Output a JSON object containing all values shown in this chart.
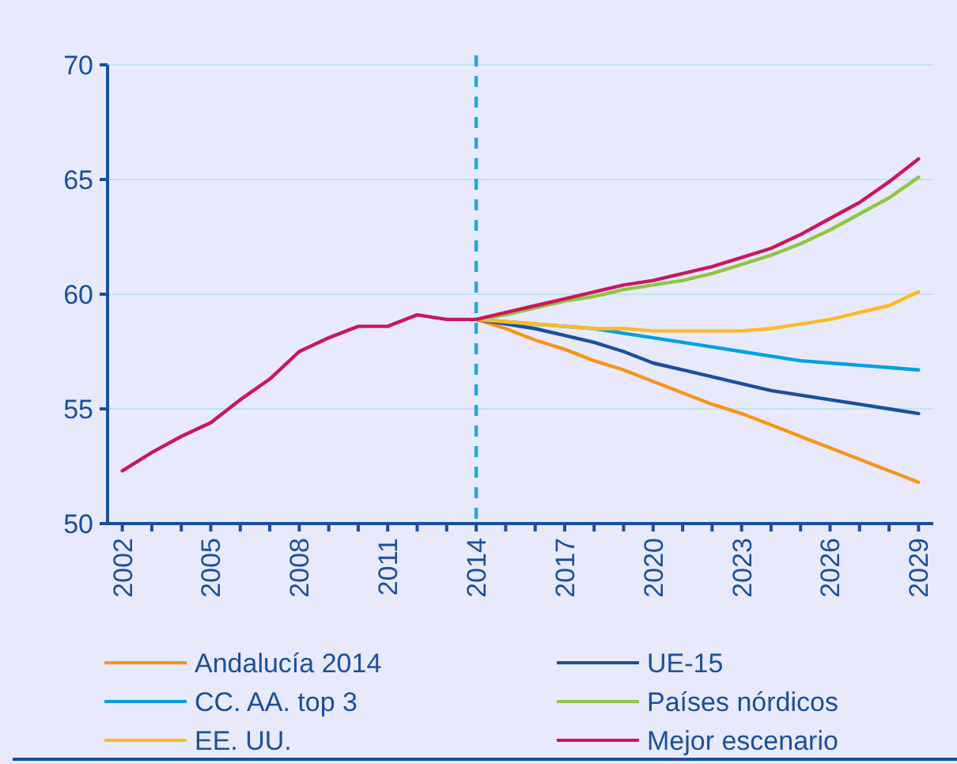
{
  "chart_data": {
    "type": "line",
    "xlim": [
      2001.5,
      2029.5
    ],
    "xticks": [
      2002,
      {
        "value": 2003,
        "label": null
      },
      {
        "value": 2004,
        "label": null
      },
      2005,
      {
        "value": 2006,
        "label": null
      },
      {
        "value": 2007,
        "label": null
      },
      2008,
      {
        "value": 2009,
        "label": null
      },
      {
        "value": 2010,
        "label": null
      },
      2011,
      {
        "value": 2012,
        "label": null
      },
      {
        "value": 2013,
        "label": null
      },
      2014,
      {
        "value": 2015,
        "label": null
      },
      {
        "value": 2016,
        "label": null
      },
      2017,
      {
        "value": 2018,
        "label": null
      },
      {
        "value": 2019,
        "label": null
      },
      2020,
      {
        "value": 2021,
        "label": null
      },
      {
        "value": 2022,
        "label": null
      },
      2023,
      {
        "value": 2024,
        "label": null
      },
      {
        "value": 2025,
        "label": null
      },
      2026,
      {
        "value": 2027,
        "label": null
      },
      {
        "value": 2028,
        "label": null
      },
      2029
    ],
    "ylim": [
      50,
      70
    ],
    "yticks": [
      50,
      55,
      60,
      65,
      70
    ],
    "grid": "y",
    "legend": "bottom",
    "line_style": "solid",
    "marker": "none",
    "ref_lines": [
      {
        "axis": "x",
        "value": 2014,
        "color": "#1ea7e6",
        "line_style": "dashed"
      }
    ],
    "series": [
      {
        "name": "Andalucía 2014",
        "color": "#f7941d",
        "x": [
          2014,
          2015,
          2016,
          2017,
          2018,
          2019,
          2020,
          2021,
          2022,
          2023,
          2024,
          2025,
          2026,
          2027,
          2028,
          2029
        ],
        "values": [
          58.9,
          58.5,
          58.0,
          57.6,
          57.1,
          56.7,
          56.2,
          55.7,
          55.2,
          54.8,
          54.3,
          53.8,
          53.3,
          52.8,
          52.3,
          51.8
        ]
      },
      {
        "name": "UE-15",
        "color": "#1b4f9c",
        "x": [
          2014,
          2015,
          2016,
          2017,
          2018,
          2019,
          2020,
          2021,
          2022,
          2023,
          2024,
          2025,
          2026,
          2027,
          2028,
          2029
        ],
        "values": [
          58.9,
          58.7,
          58.5,
          58.2,
          57.9,
          57.5,
          57.0,
          56.7,
          56.4,
          56.1,
          55.8,
          55.6,
          55.4,
          55.2,
          55.0,
          54.8
        ]
      },
      {
        "name": "CC. AA. top 3",
        "color": "#00a0e3",
        "x": [
          2014,
          2015,
          2016,
          2017,
          2018,
          2019,
          2020,
          2021,
          2022,
          2023,
          2024,
          2025,
          2026,
          2027,
          2028,
          2029
        ],
        "values": [
          58.9,
          58.8,
          58.7,
          58.6,
          58.5,
          58.3,
          58.1,
          57.9,
          57.7,
          57.5,
          57.3,
          57.1,
          57.0,
          56.9,
          56.8,
          56.7
        ]
      },
      {
        "name": "Países nórdicos",
        "color": "#8dc63f",
        "x": [
          2014,
          2015,
          2016,
          2017,
          2018,
          2019,
          2020,
          2021,
          2022,
          2023,
          2024,
          2025,
          2026,
          2027,
          2028,
          2029
        ],
        "values": [
          58.9,
          59.1,
          59.4,
          59.7,
          59.9,
          60.2,
          60.4,
          60.6,
          60.9,
          61.3,
          61.7,
          62.2,
          62.8,
          63.5,
          64.2,
          65.1
        ]
      },
      {
        "name": "EE. UU.",
        "color": "#fdb827",
        "x": [
          2014,
          2015,
          2016,
          2017,
          2018,
          2019,
          2020,
          2021,
          2022,
          2023,
          2024,
          2025,
          2026,
          2027,
          2028,
          2029
        ],
        "values": [
          58.9,
          58.8,
          58.7,
          58.6,
          58.5,
          58.5,
          58.4,
          58.4,
          58.4,
          58.4,
          58.5,
          58.7,
          58.9,
          59.2,
          59.5,
          60.1
        ]
      },
      {
        "name": "Mejor escenario",
        "color": "#c8175d",
        "x": [
          2002,
          2003,
          2004,
          2005,
          2006,
          2007,
          2008,
          2009,
          2010,
          2011,
          2012,
          2013,
          2014,
          2015,
          2016,
          2017,
          2018,
          2019,
          2020,
          2021,
          2022,
          2023,
          2024,
          2025,
          2026,
          2027,
          2028,
          2029
        ],
        "values": [
          52.3,
          53.1,
          53.8,
          54.4,
          55.4,
          56.3,
          57.5,
          58.1,
          58.6,
          58.6,
          59.1,
          58.9,
          58.9,
          59.2,
          59.5,
          59.8,
          60.1,
          60.4,
          60.6,
          60.9,
          61.2,
          61.6,
          62.0,
          62.6,
          63.3,
          64.0,
          64.9,
          65.9
        ]
      }
    ]
  }
}
